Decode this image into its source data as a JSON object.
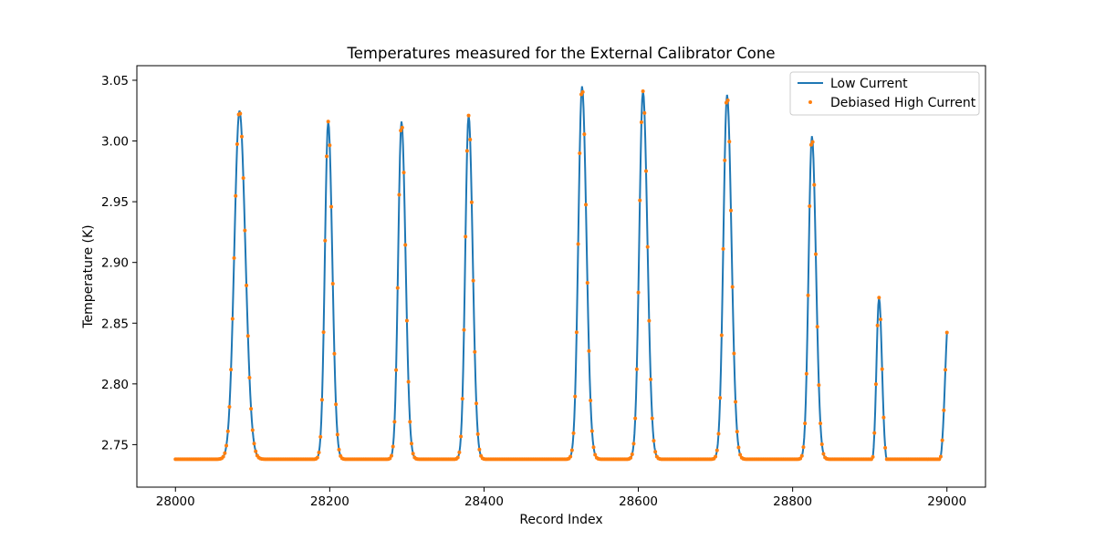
{
  "chart_data": {
    "type": "line",
    "title": "Temperatures measured for the External Calibrator Cone",
    "xlabel": "Record Index",
    "ylabel": "Temperature (K)",
    "xlim": [
      27950,
      29050
    ],
    "ylim": [
      2.715,
      3.062
    ],
    "xticks": [
      28000,
      28200,
      28400,
      28600,
      28800,
      29000
    ],
    "xtick_labels": [
      "28000",
      "28200",
      "28400",
      "28600",
      "28800",
      "29000"
    ],
    "yticks": [
      2.75,
      2.8,
      2.85,
      2.9,
      2.95,
      3.0,
      3.05
    ],
    "ytick_labels": [
      "2.75",
      "2.80",
      "2.85",
      "2.90",
      "2.95",
      "3.00",
      "3.05"
    ],
    "grid": false,
    "legend_position": "upper right",
    "baseline_segments": [
      {
        "x_start": 28000,
        "x_end": 28860,
        "y": 2.738
      },
      {
        "x_start": 28860,
        "x_end": 29000,
        "y": 2.732
      }
    ],
    "peaks": [
      {
        "center": 28083,
        "peak": 3.025,
        "base": 2.738,
        "rise": 14,
        "fall": 16
      },
      {
        "center": 28198,
        "peak": 3.016,
        "base": 2.738,
        "rise": 9,
        "fall": 11
      },
      {
        "center": 28293,
        "peak": 3.016,
        "base": 2.738,
        "rise": 9,
        "fall": 11
      },
      {
        "center": 28380,
        "peak": 3.021,
        "base": 2.738,
        "rise": 9,
        "fall": 11
      },
      {
        "center": 28527,
        "peak": 3.045,
        "base": 2.738,
        "rise": 10,
        "fall": 12
      },
      {
        "center": 28606,
        "peak": 3.041,
        "base": 2.738,
        "rise": 10,
        "fall": 12
      },
      {
        "center": 28715,
        "peak": 3.038,
        "base": 2.738,
        "rise": 10,
        "fall": 12
      },
      {
        "center": 28825,
        "peak": 3.004,
        "base": 2.738,
        "rise": 9,
        "fall": 11
      },
      {
        "center": 28912,
        "peak": 2.871,
        "base": 2.732,
        "rise": 7,
        "fall": 8
      },
      {
        "center": 29002,
        "peak": 2.855,
        "base": 2.732,
        "rise": 9,
        "fall": 6
      }
    ],
    "series": [
      {
        "name": "Low Current",
        "style": "line",
        "color": "#1f77b4"
      },
      {
        "name": "Debiased High Current",
        "style": "markers",
        "color": "#ff7f0e"
      }
    ]
  }
}
